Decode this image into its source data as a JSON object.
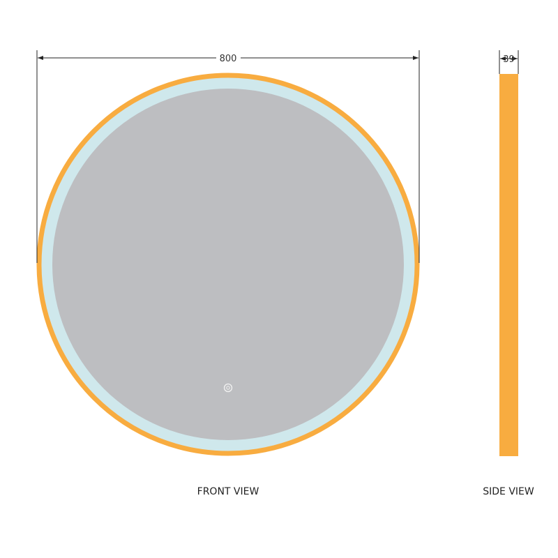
{
  "front_view": {
    "label": "FRONT VIEW",
    "width_dimension": "800",
    "icon": "touch-switch-icon"
  },
  "side_view": {
    "label": "SIDE VIEW",
    "depth_dimension": "39"
  },
  "colors": {
    "frame": "#F8AC40",
    "led_ring": "#CFE8EC",
    "mirror": "#BDBEC1",
    "dimension_line": "#222222"
  }
}
